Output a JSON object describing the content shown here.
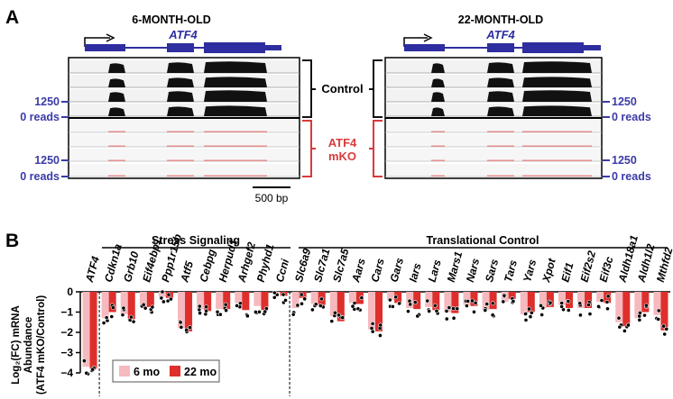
{
  "panelA": {
    "label": "A",
    "ages": [
      "6-MONTH-OLD",
      "22-MONTH-OLD"
    ],
    "gene": "ATF4",
    "groups": {
      "control": "Control",
      "mko_line1": "ATF4",
      "mko_line2": "mKO"
    },
    "axis_top": "1250",
    "axis_zero": "0 reads",
    "scale_bar": "500 bp",
    "colors": {
      "gene": "#2e2ea0",
      "control": "#111111",
      "mko": "#d93a3a",
      "axis": "#3b3ba8"
    }
  },
  "panelB": {
    "label": "B",
    "groups": [
      "Stress Signaling",
      "Translational Control"
    ],
    "ylabel_lines": [
      "Log₂(FC) mRNA",
      "Abundance",
      "(ATF4 mKO/Control)"
    ],
    "legend": [
      "6 mo",
      "22 mo"
    ],
    "colors": {
      "6mo": "#f6b9be",
      "22mo": "#de2f2c"
    }
  },
  "chart_data": {
    "type": "bar",
    "title": "",
    "xlabel": "",
    "ylabel": "Log₂(FC) mRNA Abundance (ATF4 mKO/Control)",
    "ylim": [
      -4,
      0
    ],
    "yticks": [
      0,
      -1,
      -2,
      -3,
      -4
    ],
    "categories": [
      "ATF4",
      "Cdkn1a",
      "Grb10",
      "Eif4ebp1",
      "Ppp1r15b",
      "Atf5",
      "Cebpg",
      "Herpud1",
      "Arhgef2",
      "Phyhd1",
      "Ccni",
      "Slc6a9",
      "Slc7a1",
      "Slc7a5",
      "Aars",
      "Cars",
      "Gars",
      "Iars",
      "Lars",
      "Mars1",
      "Nars",
      "Sars",
      "Tars",
      "Yars",
      "Xpot",
      "Eif1",
      "Eif2s2",
      "Eif3c",
      "Aldh18a1",
      "Aldh1l2",
      "Mthfd2"
    ],
    "series": [
      {
        "name": "6 mo",
        "values": [
          -3.7,
          -1.3,
          -1.1,
          -0.75,
          -0.25,
          -1.8,
          -0.85,
          -0.85,
          -0.55,
          -0.7,
          -0.05,
          -0.8,
          -0.6,
          -1.2,
          -0.55,
          -1.85,
          -0.4,
          -0.8,
          -0.75,
          -1.0,
          -0.65,
          -0.9,
          -0.5,
          -1.1,
          -0.8,
          -0.65,
          -0.8,
          -0.5,
          -1.5,
          -1.3,
          -1.15
        ]
      },
      {
        "name": "22 mo",
        "values": [
          -3.8,
          -1.0,
          -1.35,
          -0.75,
          -0.3,
          -1.95,
          -0.95,
          -0.85,
          -0.9,
          -0.9,
          -0.2,
          -0.3,
          -0.65,
          -1.45,
          -0.6,
          -1.95,
          -0.55,
          -0.85,
          -0.9,
          -1.05,
          -0.7,
          -0.85,
          -0.35,
          -1.0,
          -0.75,
          -0.8,
          -0.8,
          -0.55,
          -1.7,
          -1.0,
          -1.9
        ]
      }
    ],
    "divider_after": "Ccni"
  }
}
